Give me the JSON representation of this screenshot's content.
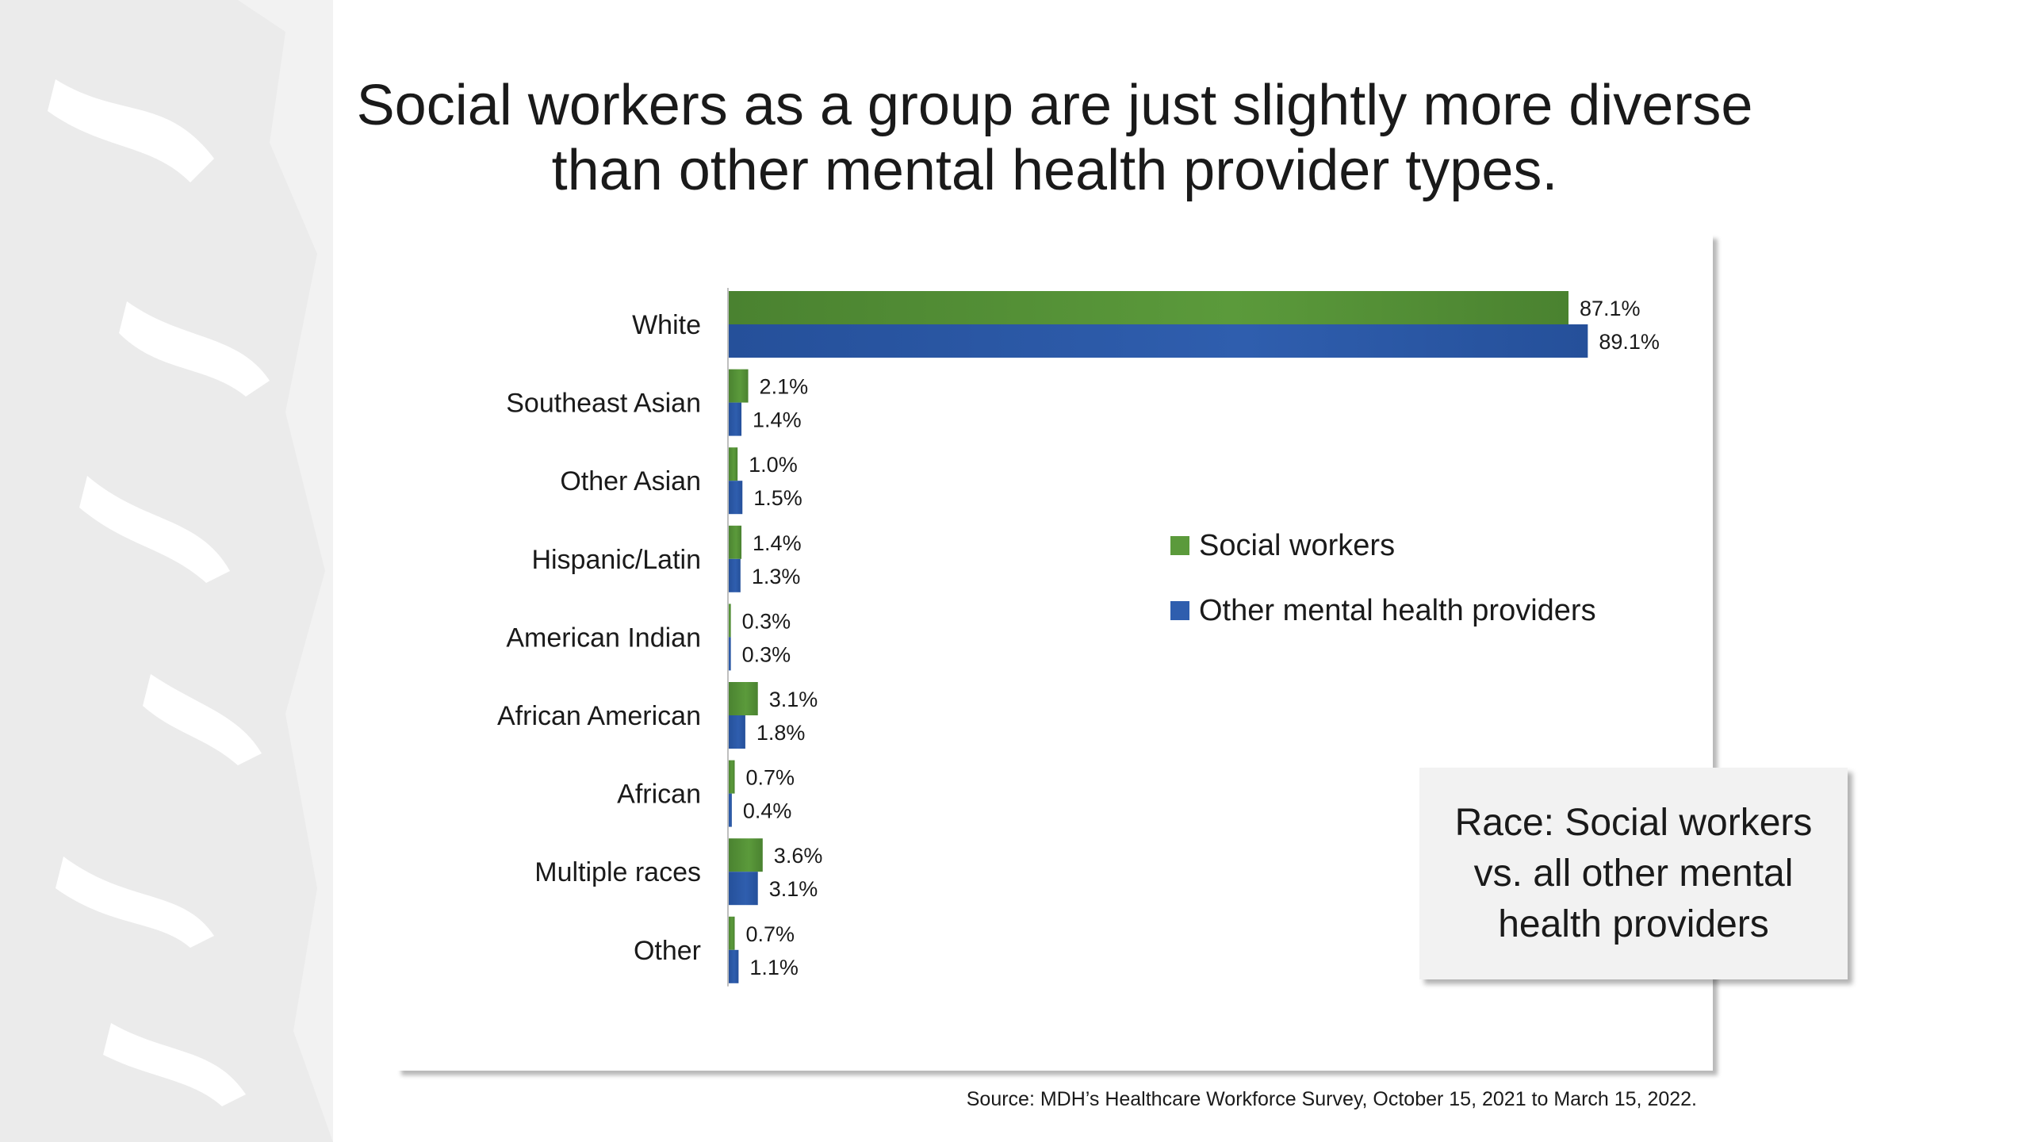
{
  "title_lines": [
    "Social workers as a group are just slightly more diverse",
    "than other mental health provider types."
  ],
  "callout_lines": [
    "Race: Social workers",
    "vs. all other mental",
    "health providers"
  ],
  "source": "Source: MDH’s Healthcare Workforce Survey, October 15, 2021 to March 15, 2022.",
  "colors": {
    "social_workers": "#5b9a3b",
    "other_providers": "#2f5eae"
  },
  "chart_data": {
    "type": "bar",
    "orientation": "horizontal",
    "categories": [
      "White",
      "Southeast Asian",
      "Other Asian",
      "Hispanic/Latin",
      "American Indian",
      "African American",
      "African",
      "Multiple races",
      "Other"
    ],
    "series": [
      {
        "name": "Social workers",
        "values": [
          87.1,
          2.1,
          1.0,
          1.4,
          0.3,
          3.1,
          0.7,
          3.6,
          0.7
        ]
      },
      {
        "name": "Other mental health providers",
        "values": [
          89.1,
          1.4,
          1.5,
          1.3,
          0.3,
          1.8,
          0.4,
          3.1,
          1.1
        ]
      }
    ],
    "value_labels": [
      [
        "87.1%",
        "2.1%",
        "1.0%",
        "1.4%",
        "0.3%",
        "3.1%",
        "0.7%",
        "3.6%",
        "0.7%"
      ],
      [
        "89.1%",
        "1.4%",
        "1.5%",
        "1.3%",
        "0.3%",
        "1.8%",
        "0.4%",
        "3.1%",
        "1.1%"
      ]
    ],
    "xlim": [
      0,
      100
    ],
    "grid": false,
    "legend_position": "right-center"
  }
}
